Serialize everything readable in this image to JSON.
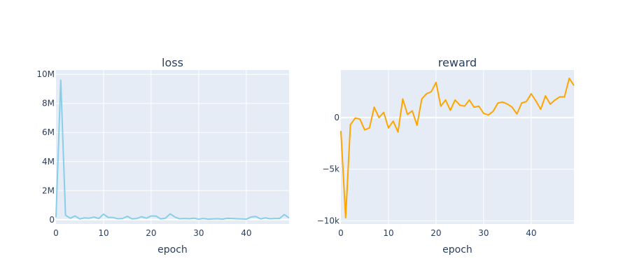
{
  "chart_data": [
    {
      "type": "line",
      "title": "loss",
      "xlabel": "epoch",
      "ylabel": "",
      "xlim": [
        0,
        49
      ],
      "ylim": [
        -300000,
        10300000
      ],
      "grid": true,
      "color": "#87CEEB",
      "x_ticks": [
        0,
        10,
        20,
        30,
        40
      ],
      "x_tick_labels": [
        "0",
        "10",
        "20",
        "30",
        "40"
      ],
      "y_ticks": [
        0,
        2000000,
        4000000,
        6000000,
        8000000,
        10000000
      ],
      "y_tick_labels": [
        "0",
        "2M",
        "4M",
        "6M",
        "8M",
        "10M"
      ],
      "x": [
        0,
        1,
        2,
        3,
        4,
        5,
        6,
        7,
        8,
        9,
        10,
        11,
        12,
        13,
        14,
        15,
        16,
        17,
        18,
        19,
        20,
        21,
        22,
        23,
        24,
        25,
        26,
        27,
        28,
        29,
        30,
        31,
        32,
        33,
        34,
        35,
        36,
        37,
        38,
        39,
        40,
        41,
        42,
        43,
        44,
        45,
        46,
        47,
        48,
        49
      ],
      "values": [
        150000,
        9600000,
        300000,
        100000,
        250000,
        50000,
        120000,
        100000,
        180000,
        80000,
        380000,
        150000,
        150000,
        60000,
        80000,
        230000,
        50000,
        80000,
        200000,
        100000,
        250000,
        250000,
        50000,
        100000,
        400000,
        180000,
        60000,
        80000,
        60000,
        100000,
        30000,
        80000,
        30000,
        50000,
        60000,
        30000,
        90000,
        80000,
        60000,
        50000,
        30000,
        180000,
        220000,
        50000,
        120000,
        60000,
        80000,
        80000,
        350000,
        120000
      ]
    },
    {
      "type": "line",
      "title": "reward",
      "xlabel": "epoch",
      "ylabel": "",
      "xlim": [
        0,
        49
      ],
      "ylim": [
        -10300,
        4600
      ],
      "grid": true,
      "color": "#FFA500",
      "x_ticks": [
        0,
        10,
        20,
        30,
        40
      ],
      "x_tick_labels": [
        "0",
        "10",
        "20",
        "30",
        "40"
      ],
      "y_ticks": [
        0,
        -5000,
        -10000
      ],
      "y_tick_labels": [
        "0",
        "−5k",
        "−10k"
      ],
      "x": [
        0,
        1,
        2,
        3,
        4,
        5,
        6,
        7,
        8,
        9,
        10,
        11,
        12,
        13,
        14,
        15,
        16,
        17,
        18,
        19,
        20,
        21,
        22,
        23,
        24,
        25,
        26,
        27,
        28,
        29,
        30,
        31,
        32,
        33,
        34,
        35,
        36,
        37,
        38,
        39,
        40,
        41,
        42,
        43,
        44,
        45,
        46,
        47,
        48,
        49
      ],
      "values": [
        -1300,
        -9700,
        -700,
        -50,
        -150,
        -1200,
        -1000,
        1000,
        0,
        500,
        -1000,
        -350,
        -1400,
        1800,
        300,
        650,
        -750,
        1800,
        2300,
        2500,
        3400,
        1100,
        1700,
        700,
        1700,
        1200,
        1100,
        1700,
        1000,
        1100,
        400,
        250,
        600,
        1400,
        1500,
        1300,
        1000,
        350,
        1400,
        1550,
        2300,
        1600,
        800,
        2100,
        1300,
        1700,
        2000,
        2000,
        3800,
        3100
      ]
    }
  ]
}
